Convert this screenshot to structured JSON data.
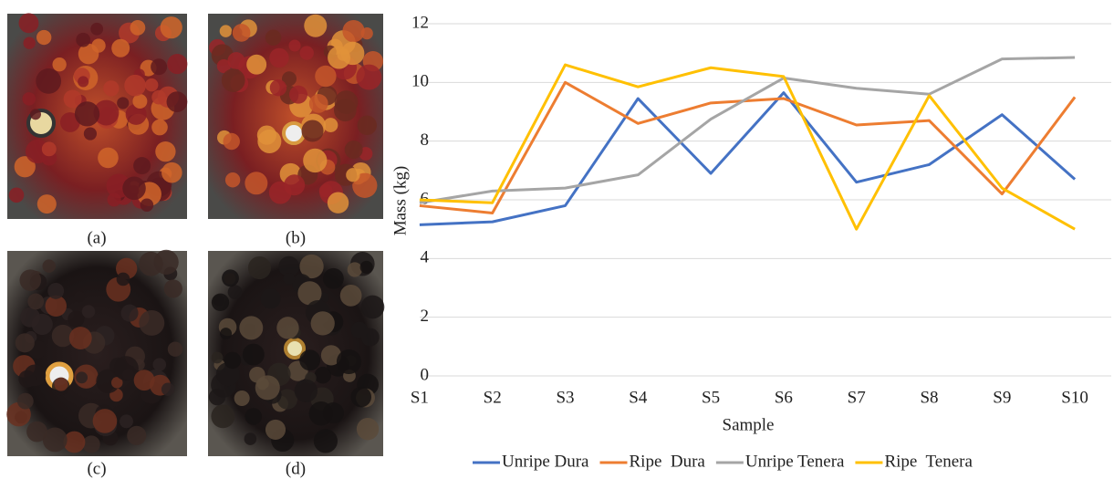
{
  "photo_labels": [
    "(a)",
    "(b)",
    "(c)",
    "(d)"
  ],
  "chart_data": {
    "type": "line",
    "y_label": "Mass (kg)",
    "x_label": "Sample",
    "categories": [
      "S1",
      "S2",
      "S3",
      "S4",
      "S5",
      "S6",
      "S7",
      "S8",
      "S9",
      "S10"
    ],
    "series": [
      {
        "name": "Unripe Dura",
        "color": "#4472c4",
        "values": [
          5.15,
          5.25,
          5.8,
          9.45,
          6.9,
          9.65,
          6.6,
          7.2,
          8.9,
          6.7
        ]
      },
      {
        "name": "Ripe  Dura",
        "color": "#ed7d31",
        "values": [
          5.8,
          5.55,
          10.0,
          8.6,
          9.3,
          9.45,
          8.55,
          8.7,
          6.2,
          9.5
        ]
      },
      {
        "name": "Unripe Tenera",
        "color": "#a5a5a5",
        "values": [
          5.9,
          6.3,
          6.4,
          6.85,
          8.75,
          10.15,
          9.8,
          9.6,
          10.8,
          10.85
        ]
      },
      {
        "name": "Ripe  Tenera",
        "color": "#ffc000",
        "values": [
          6.0,
          5.9,
          10.6,
          9.85,
          10.5,
          10.2,
          5.0,
          9.55,
          6.4,
          5.0
        ]
      }
    ],
    "ylim": [
      0,
      12
    ],
    "yticks": [
      0,
      2,
      4,
      6,
      8,
      10,
      12
    ],
    "grid": true,
    "legend": "bottom"
  }
}
